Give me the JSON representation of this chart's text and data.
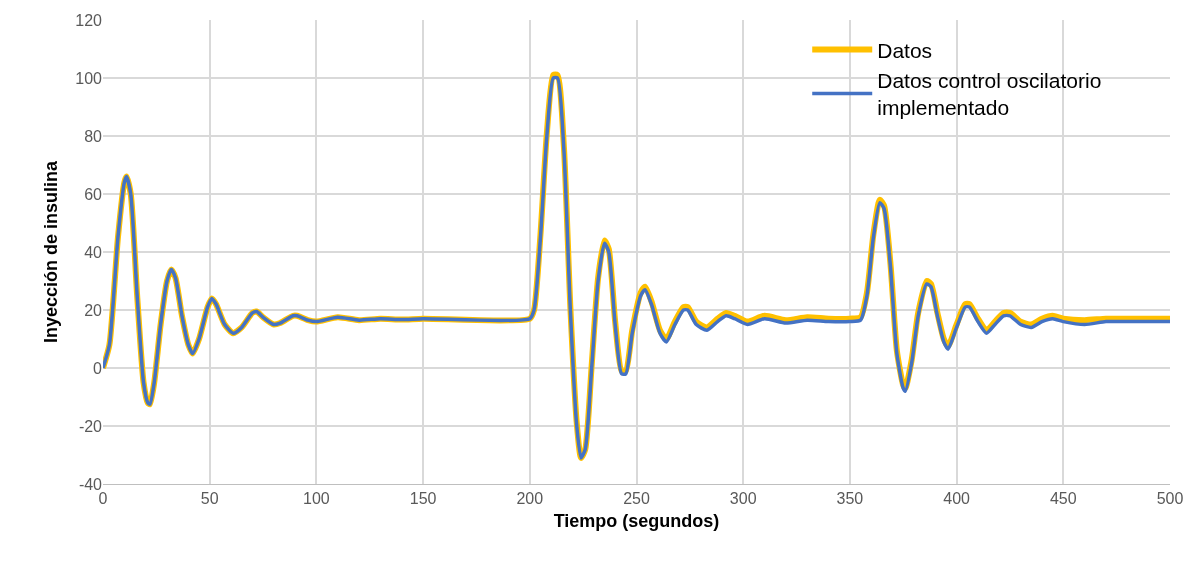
{
  "chart_data": {
    "type": "line",
    "xlabel": "Tiempo (segundos)",
    "ylabel": "Inyección de insulina",
    "xlim": [
      0,
      500
    ],
    "xticks": [
      0,
      50,
      100,
      150,
      200,
      250,
      300,
      350,
      400,
      450,
      500
    ],
    "ylim": [
      -40,
      120
    ],
    "yticks": [
      -40,
      -20,
      0,
      20,
      40,
      60,
      80,
      100,
      120
    ],
    "grid": true,
    "legend": "top right",
    "marker": "none",
    "line_style": "solid",
    "x": [
      0,
      3,
      7,
      10,
      11,
      13,
      16,
      19,
      21,
      22,
      24,
      27,
      30,
      32,
      34,
      37,
      40,
      42,
      45,
      49,
      51,
      53,
      57,
      61,
      65,
      70,
      72,
      75,
      80,
      83,
      89,
      91,
      96,
      100,
      110,
      120,
      130,
      140,
      150,
      200,
      202,
      205,
      208,
      211,
      213,
      216,
      219,
      222,
      224,
      226,
      229,
      232,
      235,
      237,
      240,
      243,
      245,
      248,
      252,
      254,
      257,
      261,
      264,
      268,
      272,
      274,
      278,
      283,
      288,
      292,
      296,
      302,
      310,
      320,
      330,
      340,
      350,
      355,
      358,
      361,
      364,
      366,
      369,
      372,
      375,
      376,
      379,
      382,
      386,
      388,
      391,
      394,
      396,
      400,
      404,
      406,
      410,
      414,
      418,
      422,
      425,
      430,
      435,
      440,
      445,
      450,
      460,
      470,
      480,
      500
    ],
    "series": [
      {
        "name": "Datos",
        "color": "#ffc000",
        "values": [
          0,
          8,
          45,
          64,
          66,
          60,
          25,
          -5,
          -12,
          -12.5,
          -5,
          15,
          30,
          34,
          31,
          18,
          8,
          5,
          10,
          21,
          24,
          22,
          15,
          12,
          14,
          19,
          19.5,
          17.5,
          15,
          15.5,
          18,
          18,
          16.5,
          16,
          17.5,
          16.5,
          17,
          16.7,
          17,
          17,
          20,
          46,
          81,
          101,
          101,
          76,
          21,
          -19,
          -31,
          -28,
          1,
          31,
          44,
          41,
          16,
          -1,
          -1,
          13,
          26,
          28,
          23,
          13,
          10,
          16,
          21,
          21,
          16,
          14,
          17,
          19,
          18,
          16,
          18,
          16.5,
          17.5,
          17,
          17,
          17.5,
          26,
          46,
          58,
          56,
          36,
          6,
          -6,
          -7,
          3,
          19,
          30,
          29,
          19,
          10,
          7.5,
          15,
          22,
          22,
          17,
          13,
          16,
          19,
          19,
          16,
          15,
          17,
          18,
          17,
          16.5,
          17,
          17,
          17
        ]
      },
      {
        "name": "Datos control oscilatorio implementado",
        "color": "#4472c4",
        "values": [
          0,
          8,
          45,
          64,
          66,
          60,
          25,
          -5,
          -12,
          -12.5,
          -5,
          15,
          30,
          34,
          31,
          18,
          8,
          5,
          10,
          21,
          24,
          22,
          15,
          12,
          14,
          19,
          19.5,
          17.5,
          15,
          15.5,
          18,
          18,
          16.5,
          16,
          17.5,
          16.5,
          17,
          16.7,
          17,
          17,
          20,
          45,
          80,
          100,
          100,
          75,
          20,
          -20,
          -31,
          -28,
          0,
          30,
          43,
          40,
          15,
          -2,
          -2,
          12,
          25,
          27,
          22,
          12,
          9,
          15,
          20,
          20,
          15,
          13,
          16,
          18,
          17,
          15,
          17,
          15.5,
          16.5,
          16,
          16,
          16.5,
          25,
          45,
          57,
          55,
          35,
          5,
          -7,
          -8,
          2,
          18,
          29,
          28,
          18,
          9,
          6.5,
          14,
          21,
          21,
          16,
          12,
          15,
          18,
          18,
          15,
          14,
          16,
          17,
          16,
          15,
          16,
          16,
          16
        ]
      }
    ]
  }
}
